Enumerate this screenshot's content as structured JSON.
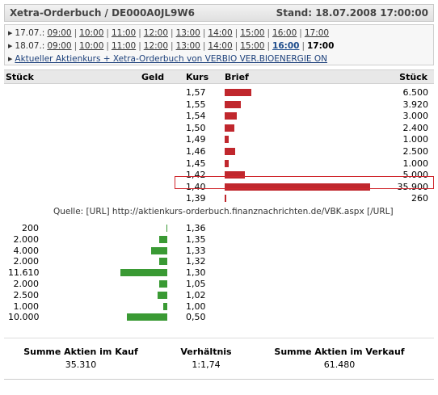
{
  "header": {
    "title": "Xetra-Orderbuch / DE000A0JL9W6",
    "stand": "Stand: 18.07.2008 17:00:00"
  },
  "days": [
    {
      "date": "17.07.:",
      "times": [
        "09:00",
        "10:00",
        "11:00",
        "12:00",
        "13:00",
        "14:00",
        "15:00",
        "16:00",
        "17:00"
      ],
      "selected": "",
      "current": ""
    },
    {
      "date": "18.07.:",
      "times": [
        "09:00",
        "10:00",
        "11:00",
        "12:00",
        "13:00",
        "14:00",
        "15:00",
        "16:00"
      ],
      "selected": "16:00",
      "current": "17:00"
    }
  ],
  "info_link": "Aktueller Aktienkurs + Xetra-Orderbuch von VERBIO VER.BIOENERGIE ON",
  "columns": {
    "stueck_left": "Stück",
    "geld": "Geld",
    "kurs": "Kurs",
    "brief": "Brief",
    "stueck_right": "Stück"
  },
  "ask_rows": [
    {
      "kurs": "1,57",
      "qty": "6.500",
      "value": 6500
    },
    {
      "kurs": "1,55",
      "qty": "3.920",
      "value": 3920
    },
    {
      "kurs": "1,54",
      "qty": "3.000",
      "value": 3000
    },
    {
      "kurs": "1,50",
      "qty": "2.400",
      "value": 2400
    },
    {
      "kurs": "1,49",
      "qty": "1.000",
      "value": 1000
    },
    {
      "kurs": "1,46",
      "qty": "2.500",
      "value": 2500
    },
    {
      "kurs": "1,45",
      "qty": "1.000",
      "value": 1000
    },
    {
      "kurs": "1,42",
      "qty": "5.000",
      "value": 5000
    },
    {
      "kurs": "1,40",
      "qty": "35.900",
      "value": 35900,
      "highlight": true
    },
    {
      "kurs": "1,39",
      "qty": "260",
      "value": 260
    }
  ],
  "quelle": "Quelle: [URL] http://aktienkurs-orderbuch.finanznachrichten.de/VBK.aspx [/URL]",
  "bid_rows": [
    {
      "kurs": "1,36",
      "qty": "200",
      "value": 200
    },
    {
      "kurs": "1,35",
      "qty": "2.000",
      "value": 2000
    },
    {
      "kurs": "1,33",
      "qty": "4.000",
      "value": 4000
    },
    {
      "kurs": "1,32",
      "qty": "2.000",
      "value": 2000
    },
    {
      "kurs": "1,30",
      "qty": "11.610",
      "value": 11610
    },
    {
      "kurs": "1,05",
      "qty": "2.000",
      "value": 2000
    },
    {
      "kurs": "1,02",
      "qty": "2.500",
      "value": 2500
    },
    {
      "kurs": "1,00",
      "qty": "1.000",
      "value": 1000
    },
    {
      "kurs": "0,50",
      "qty": "10.000",
      "value": 10000
    }
  ],
  "summary": {
    "kauf_label": "Summe Aktien im Kauf",
    "kauf_value": "35.310",
    "ratio_label": "Verhältnis",
    "ratio_value": "1:1,74",
    "verkauf_label": "Summe Aktien im Verkauf",
    "verkauf_value": "61.480"
  },
  "colors": {
    "ask_bar": "#c0272d",
    "bid_bar": "#3a9a34",
    "highlight": "#d0272d"
  }
}
